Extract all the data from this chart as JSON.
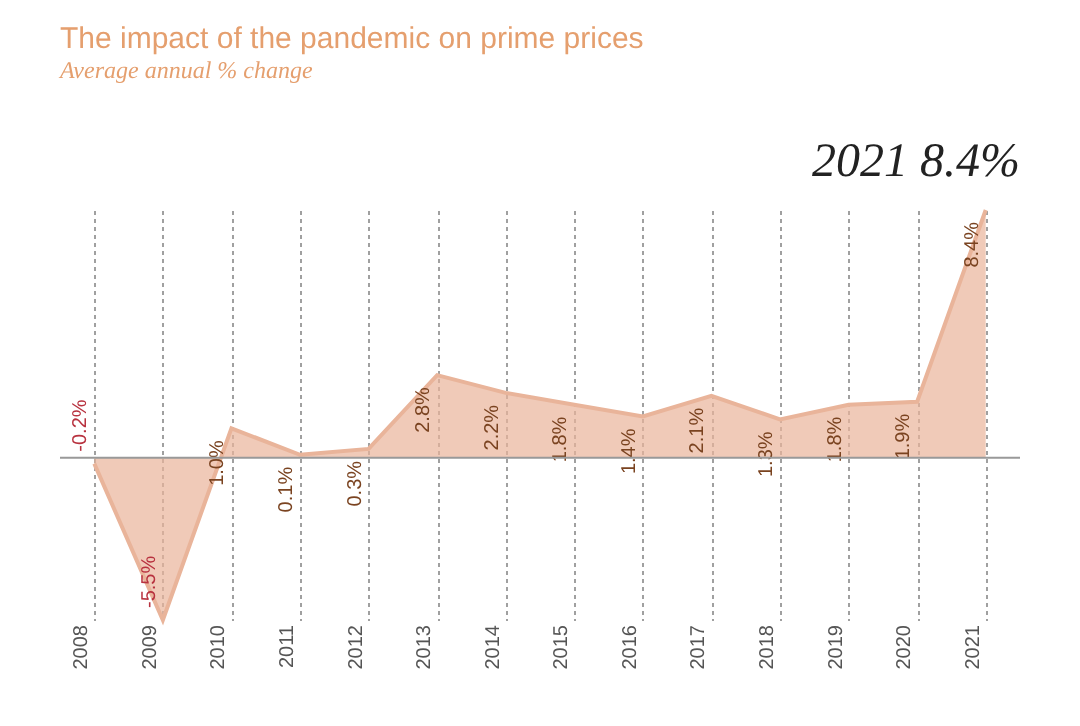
{
  "chart_data": {
    "type": "area",
    "title": "The impact of the pandemic on prime prices",
    "subtitle": "Average annual % change",
    "categories": [
      "2008",
      "2009",
      "2010",
      "2011",
      "2012",
      "2013",
      "2014",
      "2015",
      "2016",
      "2017",
      "2018",
      "2019",
      "2020",
      "2021"
    ],
    "color": "#e9b49a",
    "values": [
      -0.2,
      -5.5,
      1.0,
      0.1,
      0.3,
      2.8,
      2.2,
      1.8,
      1.4,
      2.1,
      1.3,
      1.8,
      1.9,
      8.4
    ],
    "value_labels": [
      "-0.2%",
      "-5.5%",
      "1.0%",
      "0.1%",
      "0.3%",
      "2.8%",
      "2.2%",
      "1.8%",
      "1.4%",
      "2.1%",
      "1.3%",
      "1.8%",
      "1.9%",
      "8.4%"
    ],
    "annotations": [
      "2021 8.4%"
    ],
    "grid": "x"
  }
}
